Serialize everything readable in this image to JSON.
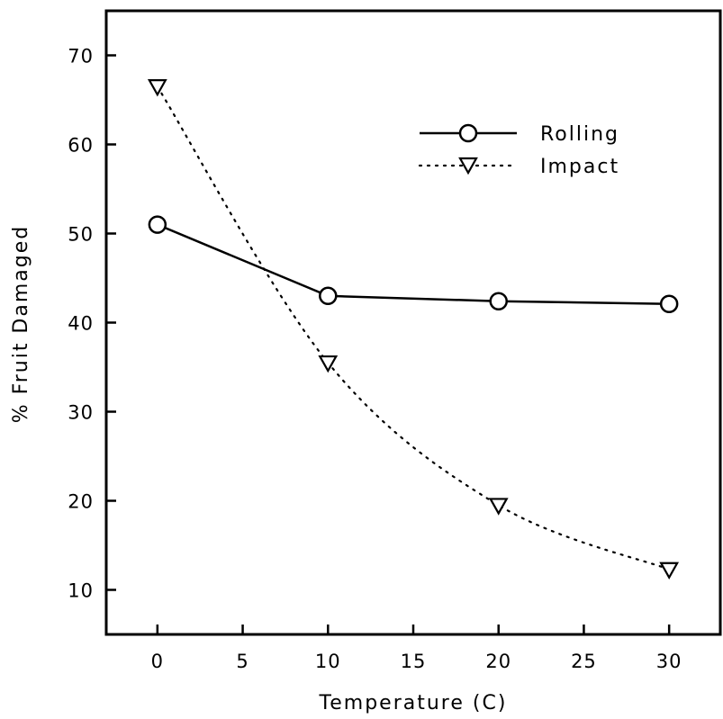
{
  "chart_data": {
    "type": "line",
    "title": "",
    "xlabel": "Temperature (C)",
    "ylabel": "% Fruit Damaged",
    "xlim": [
      -3,
      33
    ],
    "ylim": [
      5,
      75
    ],
    "xticks": [
      0,
      5,
      10,
      15,
      20,
      25,
      30
    ],
    "yticks": [
      10,
      20,
      30,
      40,
      50,
      60,
      70
    ],
    "grid": false,
    "legend_position": "top-right",
    "series": [
      {
        "name": "Rolling",
        "line_style": "solid",
        "marker": "circle",
        "x": [
          0,
          10,
          20,
          30
        ],
        "y": [
          51,
          43,
          42.4,
          42.1
        ]
      },
      {
        "name": "Impact",
        "line_style": "dotted",
        "marker": "triangle-down",
        "x": [
          0,
          10,
          20,
          30
        ],
        "y": [
          66.5,
          35.5,
          19.5,
          12.3
        ]
      }
    ]
  }
}
